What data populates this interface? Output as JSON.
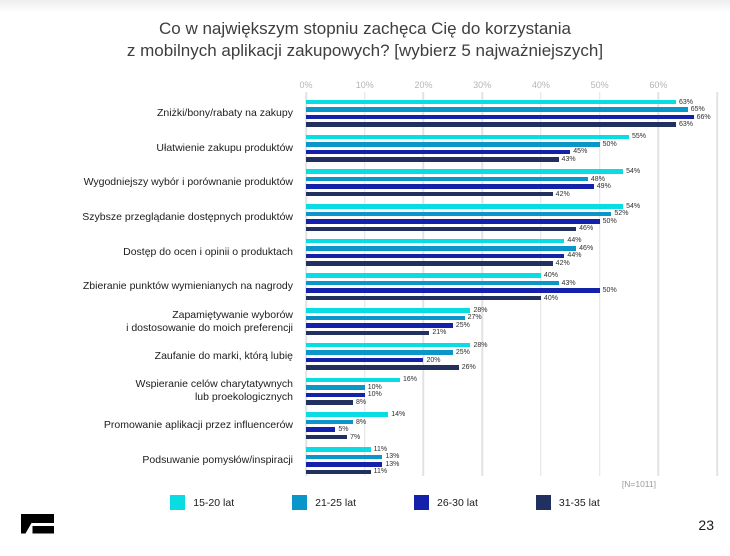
{
  "slide": {
    "title_line1": "Co w największym stopniu zachęca Cię do korzystania",
    "title_line2": "z mobilnych aplikacji zakupowych? [wybierz 5 najważniejszych]",
    "note": "[N=1011]",
    "page_number": "23"
  },
  "chart_data": {
    "type": "bar",
    "orientation": "horizontal",
    "title": "Co w największym stopniu zachęca Cię do korzystania z mobilnych aplikacji zakupowych? [wybierz 5 najważniejszych]",
    "x_axis": {
      "ticks": [
        "0%",
        "10%",
        "20%",
        "30%",
        "40%",
        "50%",
        "60%"
      ],
      "tick_step": 10,
      "grid_max": 70,
      "max_percent": 71
    },
    "grid": true,
    "legend_position": "bottom",
    "value_suffix": "%",
    "note": "[N=1011]",
    "categories": [
      "Zniżki/bony/rabaty na zakupy",
      "Ułatwienie zakupu produktów",
      "Wygodniejszy wybór i porównanie produktów",
      "Szybsze przeglądanie dostępnych produktów",
      "Dostęp do ocen i opinii o produktach",
      "Zbieranie punktów wymienianych na nagrody",
      "Zapamiętywanie wyborów\ni dostosowanie do moich preferencji",
      "Zaufanie do marki, którą lubię",
      "Wspieranie celów charytatywnych\nlub proekologicznych",
      "Promowanie aplikacji przez influencerów",
      "Podsuwanie pomysłów/inspiracji"
    ],
    "series": [
      {
        "name": "15-20 lat",
        "color": "#0ADCE4",
        "values": [
          63,
          55,
          54,
          54,
          44,
          40,
          28,
          28,
          16,
          14,
          11
        ]
      },
      {
        "name": "21-25 lat",
        "color": "#0A96C8",
        "values": [
          65,
          50,
          48,
          52,
          46,
          43,
          27,
          25,
          10,
          8,
          13
        ]
      },
      {
        "name": "26-30 lat",
        "color": "#1421AB",
        "values": [
          66,
          45,
          49,
          50,
          44,
          50,
          25,
          20,
          10,
          5,
          13
        ]
      },
      {
        "name": "31-35 lat",
        "color": "#21305E",
        "values": [
          63,
          43,
          42,
          46,
          42,
          40,
          21,
          26,
          8,
          7,
          11
        ]
      }
    ]
  }
}
